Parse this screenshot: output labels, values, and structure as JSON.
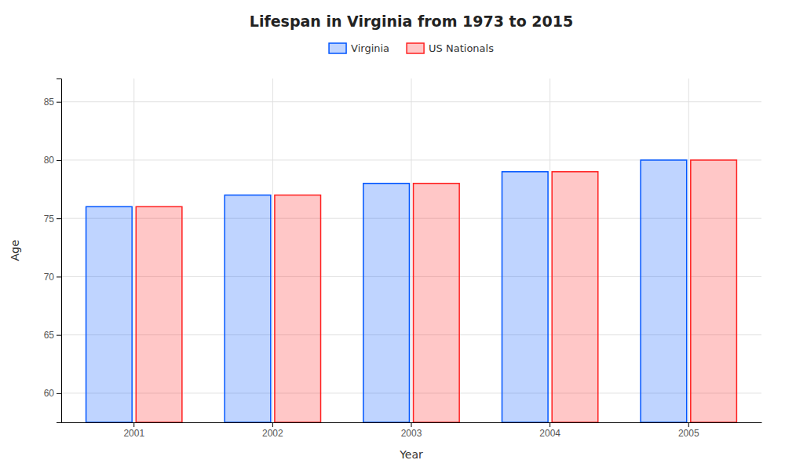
{
  "chart_data": {
    "type": "bar",
    "title": "Lifespan in Virginia from 1973 to 2015",
    "x_label": "Year",
    "y_label": "Age",
    "categories": [
      "2001",
      "2002",
      "2003",
      "2004",
      "2005"
    ],
    "series": [
      {
        "name": "Virginia",
        "color": "#0055ff",
        "values": [
          76,
          77,
          78,
          79,
          80
        ]
      },
      {
        "name": "US Nationals",
        "color": "#ff2020",
        "values": [
          76,
          77,
          78,
          79,
          80
        ]
      }
    ],
    "ylim": [
      57.5,
      87
    ],
    "yticks": [
      60,
      65,
      70,
      75,
      80,
      85
    ],
    "grid": true,
    "legend": "top"
  }
}
